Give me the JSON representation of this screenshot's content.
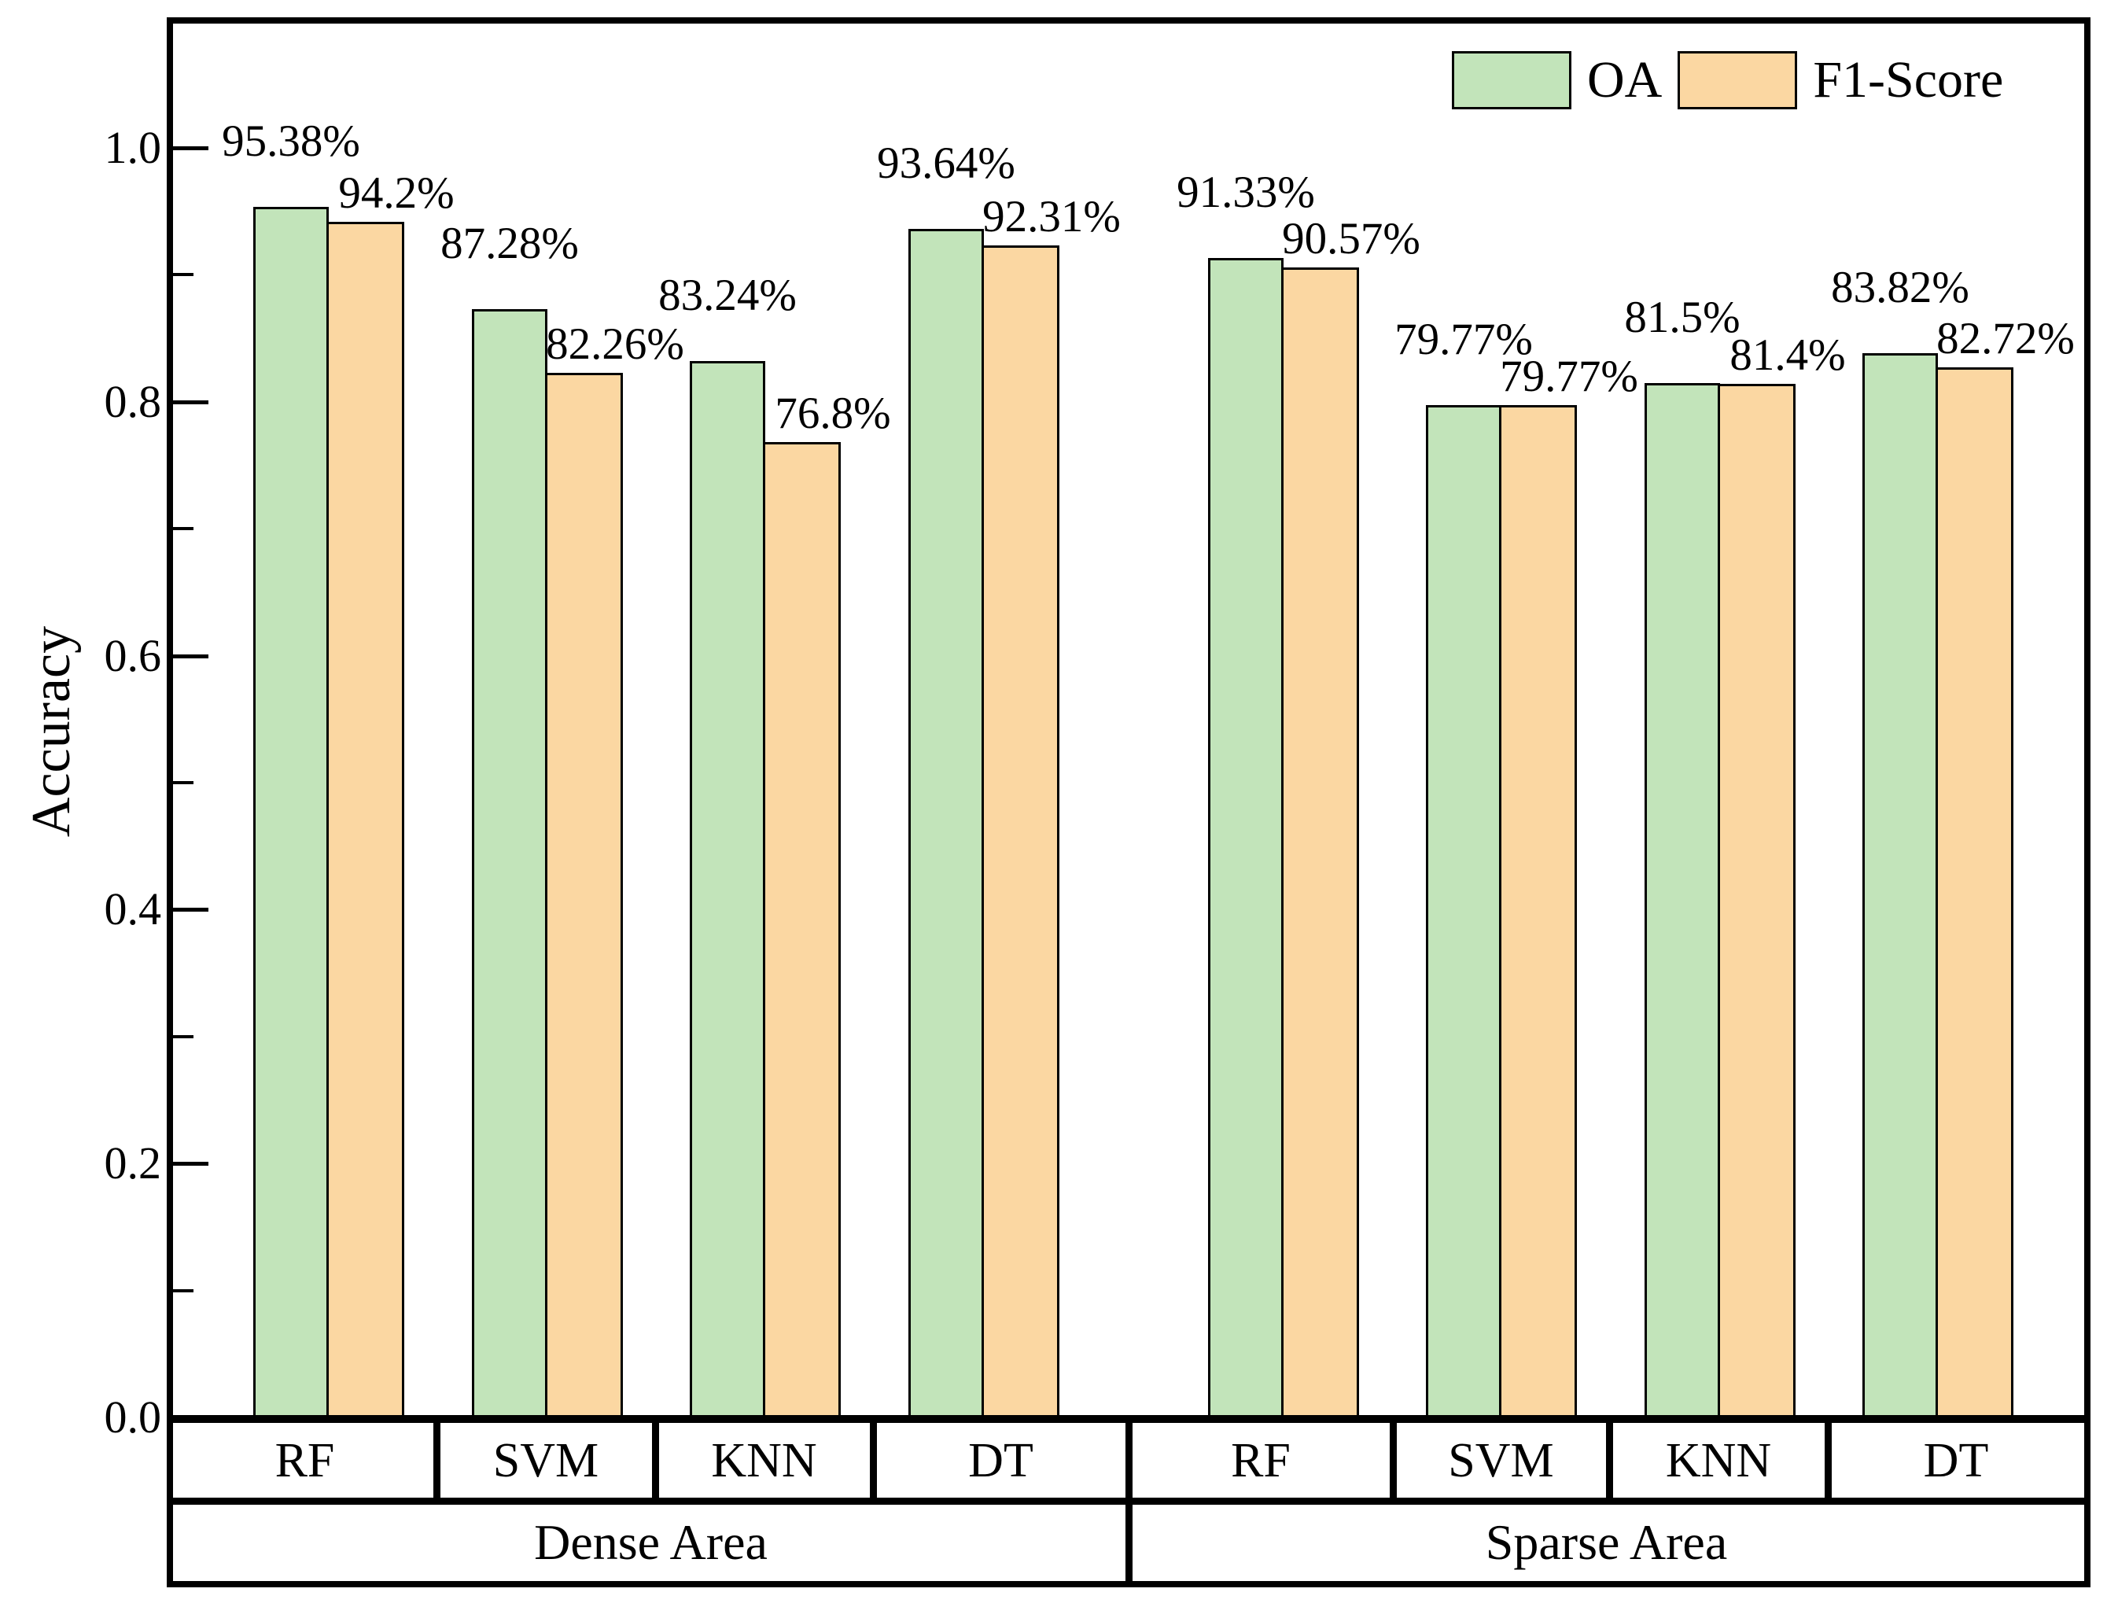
{
  "chart_data": {
    "type": "bar",
    "title": "",
    "xlabel": "",
    "ylabel": "Accuracy",
    "ylim": [
      0,
      1.1
    ],
    "yticks": [
      0.0,
      0.2,
      0.4,
      0.6,
      0.8,
      1.0
    ],
    "ytick_labels": [
      "0.0",
      "0.2",
      "0.4",
      "0.6",
      "0.8",
      "1.0"
    ],
    "minor_yticks": [
      0.1,
      0.3,
      0.5,
      0.7,
      0.9
    ],
    "grid": false,
    "legend_position": "top-right-inside",
    "bar_edge_color": "#000000",
    "areas": [
      {
        "label": "Dense Area",
        "categories": [
          "RF",
          "SVM",
          "KNN",
          "DT"
        ]
      },
      {
        "label": "Sparse Area",
        "categories": [
          "RF",
          "SVM",
          "KNN",
          "DT"
        ]
      }
    ],
    "series": [
      {
        "name": "OA",
        "color": "#c2e4ba",
        "values_pct": [
          95.38,
          87.28,
          83.24,
          93.64,
          91.33,
          79.77,
          81.5,
          83.82
        ],
        "labels": [
          "95.38%",
          "87.28%",
          "83.24%",
          "93.64%",
          "91.33%",
          "79.77%",
          "81.5%",
          "83.82%"
        ]
      },
      {
        "name": "F1-Score",
        "color": "#fbd7a2",
        "values_pct": [
          94.2,
          82.26,
          76.8,
          92.31,
          90.57,
          79.77,
          81.4,
          82.72
        ],
        "labels": [
          "94.2%",
          "82.26%",
          "76.8%",
          "92.31%",
          "90.57%",
          "79.77%",
          "81.4%",
          "82.72%"
        ]
      }
    ]
  }
}
